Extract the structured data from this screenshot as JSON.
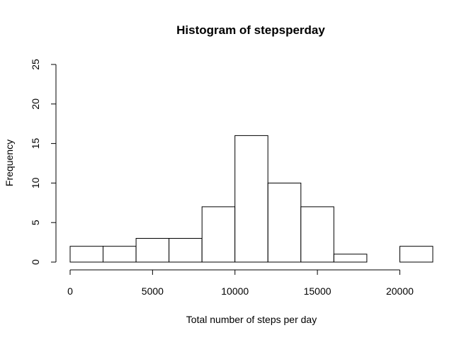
{
  "chart_data": {
    "type": "bar",
    "title": "Histogram of stepsperday",
    "xlabel": "Total number of steps per day",
    "ylabel": "Frequency",
    "bins": [
      {
        "start": 0,
        "end": 2000,
        "count": 2
      },
      {
        "start": 2000,
        "end": 4000,
        "count": 2
      },
      {
        "start": 4000,
        "end": 6000,
        "count": 3
      },
      {
        "start": 6000,
        "end": 8000,
        "count": 3
      },
      {
        "start": 8000,
        "end": 10000,
        "count": 7
      },
      {
        "start": 10000,
        "end": 12000,
        "count": 16
      },
      {
        "start": 12000,
        "end": 14000,
        "count": 10
      },
      {
        "start": 14000,
        "end": 16000,
        "count": 7
      },
      {
        "start": 16000,
        "end": 18000,
        "count": 1
      },
      {
        "start": 18000,
        "end": 20000,
        "count": 0
      },
      {
        "start": 20000,
        "end": 22000,
        "count": 2
      }
    ],
    "xlim": [
      0,
      22000
    ],
    "ylim": [
      0,
      25
    ],
    "x_ticks": [
      0,
      5000,
      10000,
      15000,
      20000
    ],
    "y_ticks": [
      0,
      5,
      10,
      15,
      20,
      25
    ],
    "bar_fill": "#ffffff",
    "bar_stroke": "#000000",
    "grid": false,
    "legend": "none"
  }
}
